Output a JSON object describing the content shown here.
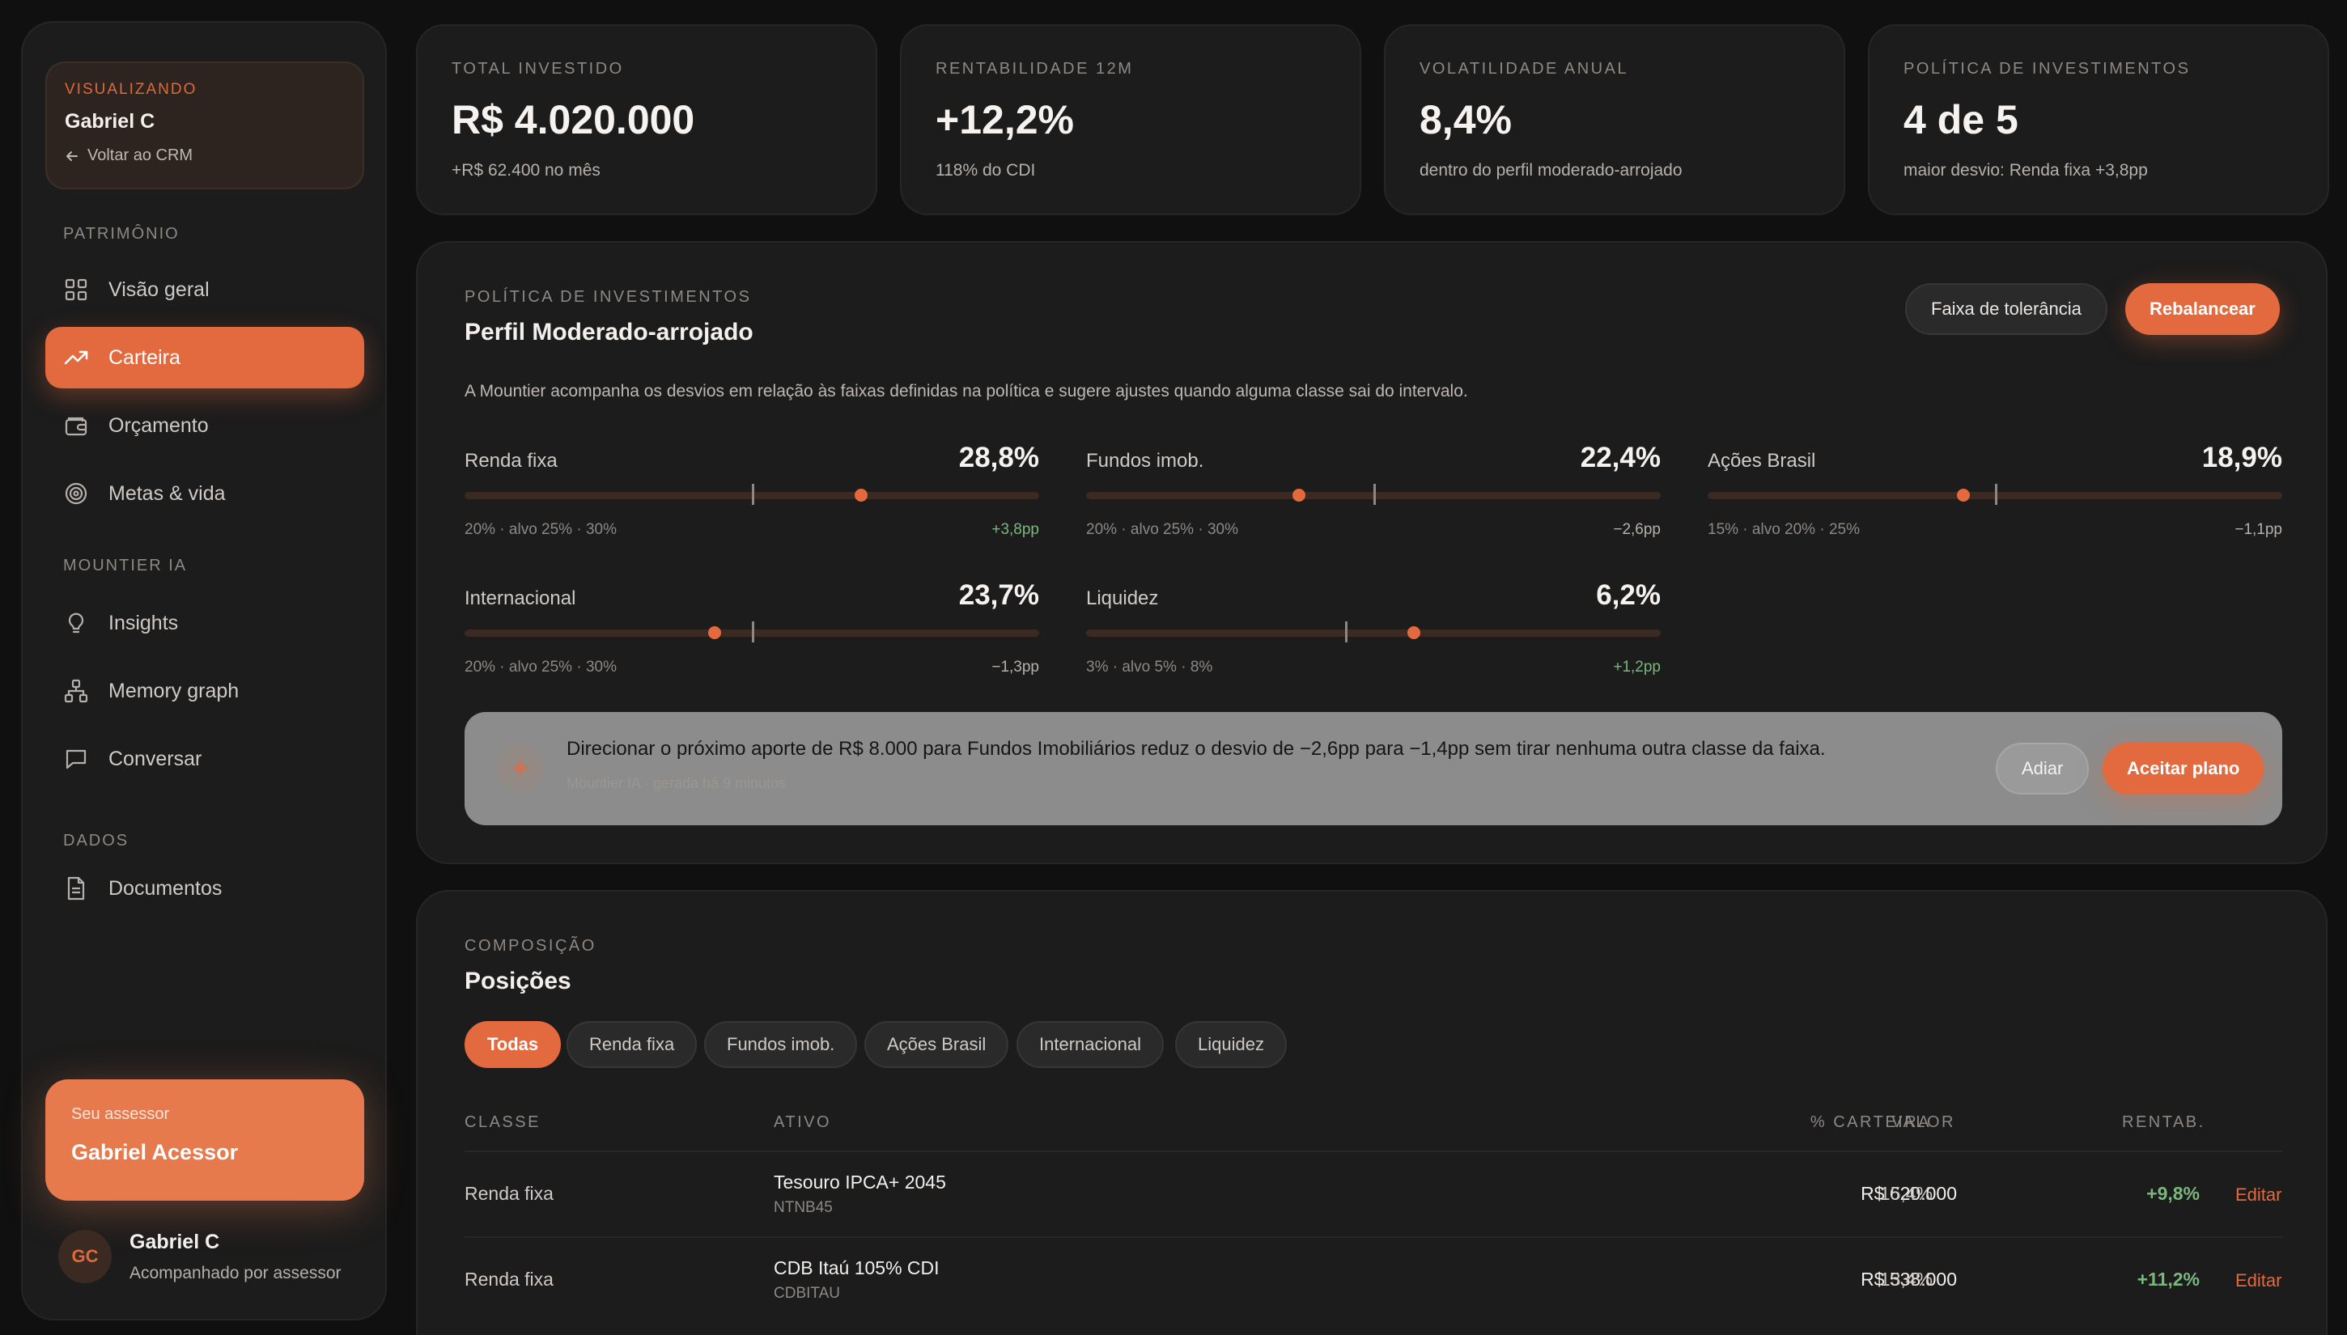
{
  "sidebar": {
    "viewing": {
      "tag": "VISUALIZANDO",
      "name": "Gabriel C",
      "back": "Voltar ao CRM"
    },
    "sections": {
      "patrimonio": "PATRIMÔNIO",
      "ia": "MOUNTIER IA",
      "dados": "DADOS"
    },
    "items": [
      {
        "label": "Visão geral",
        "icon": "grid-icon"
      },
      {
        "label": "Carteira",
        "icon": "trend-up-icon",
        "active": true
      },
      {
        "label": "Orçamento",
        "icon": "wallet-icon"
      },
      {
        "label": "Metas & vida",
        "icon": "target-icon"
      },
      {
        "label": "Insights",
        "icon": "lightbulb-icon"
      },
      {
        "label": "Memory graph",
        "icon": "graph-icon"
      },
      {
        "label": "Conversar",
        "icon": "chat-icon"
      },
      {
        "label": "Documentos",
        "icon": "document-icon"
      }
    ],
    "advisor": {
      "label": "Seu assessor",
      "name": "Gabriel Acessor"
    },
    "user": {
      "initials": "GC",
      "name": "Gabriel C",
      "status": "Acompanhado por assessor"
    }
  },
  "kpis": [
    {
      "label": "TOTAL INVESTIDO",
      "value": "R$ 4.020.000",
      "sub": "+R$ 62.400 no mês"
    },
    {
      "label": "RENTABILIDADE 12M",
      "value": "+12,2%",
      "sub": "118% do CDI"
    },
    {
      "label": "VOLATILIDADE ANUAL",
      "value": "8,4%",
      "sub": "dentro do perfil moderado-arrojado"
    },
    {
      "label": "POLÍTICA DE INVESTIMENTOS",
      "value": "4 de 5",
      "sub": "maior desvio: Renda fixa +3,8pp"
    }
  ],
  "policy": {
    "eyebrow": "POLÍTICA DE INVESTIMENTOS",
    "title": "Perfil Moderado-arrojado",
    "tolerance_button": "Faixa de tolerância",
    "rebalance_button": "Rebalancear",
    "description": "A Mountier acompanha os desvios em relação às faixas definidas na política e sugere ajustes quando alguma classe sai do intervalo.",
    "allocations": [
      {
        "name": "Renda fixa",
        "value": "28,8%",
        "range": "20% · alvo 25% · 30%",
        "delta": "+3,8pp",
        "positive": true,
        "min": 20,
        "target": 25,
        "max": 30,
        "actual": 28.8
      },
      {
        "name": "Fundos imob.",
        "value": "22,4%",
        "range": "20% · alvo 25% · 30%",
        "delta": "−2,6pp",
        "positive": false,
        "min": 20,
        "target": 25,
        "max": 30,
        "actual": 22.4
      },
      {
        "name": "Ações Brasil",
        "value": "18,9%",
        "range": "15% · alvo 20% · 25%",
        "delta": "−1,1pp",
        "positive": false,
        "min": 15,
        "target": 20,
        "max": 25,
        "actual": 18.9
      },
      {
        "name": "Internacional",
        "value": "23,7%",
        "range": "20% · alvo 25% · 30%",
        "delta": "−1,3pp",
        "positive": false,
        "min": 20,
        "target": 25,
        "max": 30,
        "actual": 23.7
      },
      {
        "name": "Liquidez",
        "value": "6,2%",
        "range": "3% · alvo 5% · 8%",
        "delta": "+1,2pp",
        "positive": true,
        "min": 3,
        "target": 5,
        "max": 8,
        "actual": 6.2
      }
    ],
    "suggestion": {
      "text": "Direcionar o próximo aporte de R$ 8.000 para Fundos Imobiliários reduz o desvio de −2,6pp para −1,4pp sem tirar nenhuma outra classe da faixa.",
      "meta": "Mountier IA · gerada há 9 minutos",
      "postpone": "Adiar",
      "accept": "Aceitar plano"
    }
  },
  "positions": {
    "eyebrow": "COMPOSIÇÃO",
    "title": "Posições",
    "filters": [
      "Todas",
      "Renda fixa",
      "Fundos imob.",
      "Ações Brasil",
      "Internacional",
      "Liquidez"
    ],
    "columns": {
      "classe": "CLASSE",
      "ativo": "ATIVO",
      "valor": "VALOR",
      "carteira": "% CARTEIRA",
      "rentab": "RENTAB."
    },
    "rows": [
      {
        "classe": "Renda fixa",
        "ativo": "Tesouro IPCA+ 2045",
        "ticker": "NTNB45",
        "valor": "R$ 620.000",
        "carteira": "15,4%",
        "rentab": "+9,8%",
        "action": "Editar"
      },
      {
        "classe": "Renda fixa",
        "ativo": "CDB Itaú 105% CDI",
        "ticker": "CDBITAU",
        "valor": "R$ 538.000",
        "carteira": "13,4%",
        "rentab": "+11,2%",
        "action": "Editar"
      }
    ]
  },
  "colors": {
    "accent": "#e3693e",
    "positive": "#7ab77c",
    "background": "#101010",
    "card": "#1c1c1c"
  }
}
